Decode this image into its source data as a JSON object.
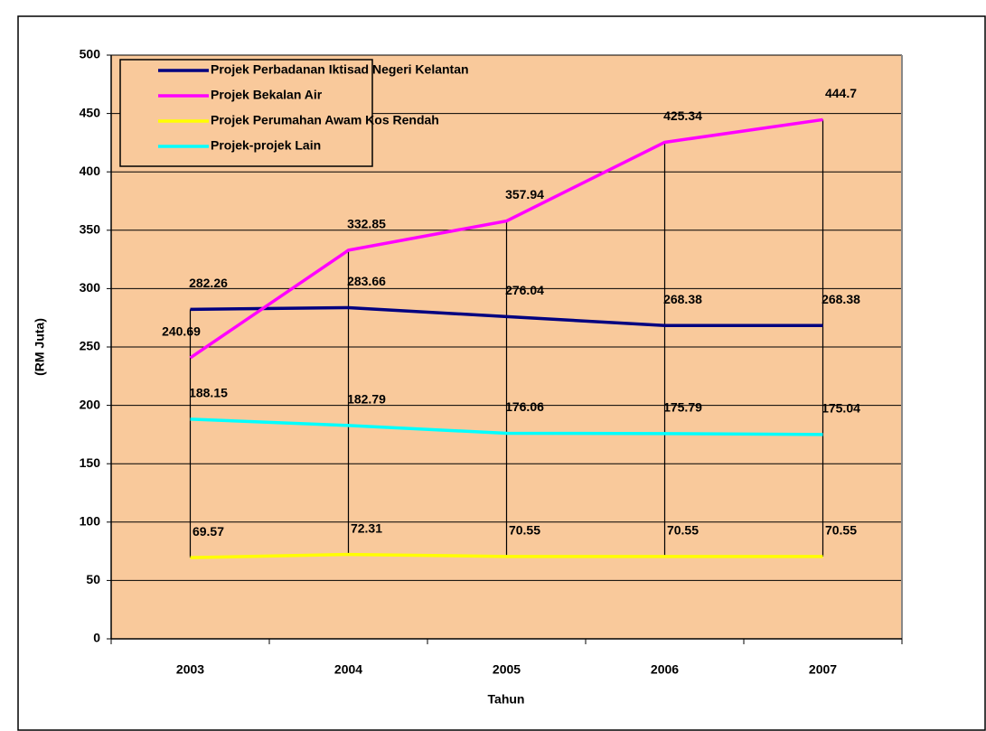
{
  "chart_data": {
    "type": "line",
    "x_label": "Tahun",
    "y_label": "(RM Juta)",
    "categories": [
      "2003",
      "2004",
      "2005",
      "2006",
      "2007"
    ],
    "series": [
      {
        "name": "Projek Perbadanan Iktisad Negeri Kelantan",
        "color": "#000080",
        "values": [
          282.26,
          283.66,
          276.04,
          268.38,
          268.38
        ]
      },
      {
        "name": "Projek Bekalan Air",
        "color": "#ff00ff",
        "values": [
          240.69,
          332.85,
          357.94,
          425.34,
          444.7
        ]
      },
      {
        "name": "Projek Perumahan Awam Kos Rendah",
        "color": "#ffff00",
        "values": [
          69.57,
          72.31,
          70.55,
          70.55,
          70.55
        ]
      },
      {
        "name": "Projek-projek Lain",
        "color": "#00ffff",
        "values": [
          188.15,
          182.79,
          176.06,
          175.79,
          175.04
        ]
      }
    ],
    "ylim": [
      0,
      500
    ],
    "yticks": [
      0,
      50,
      100,
      150,
      200,
      250,
      300,
      350,
      400,
      450,
      500
    ],
    "grid": true,
    "legend": "top-left",
    "high_low_lines": true
  }
}
